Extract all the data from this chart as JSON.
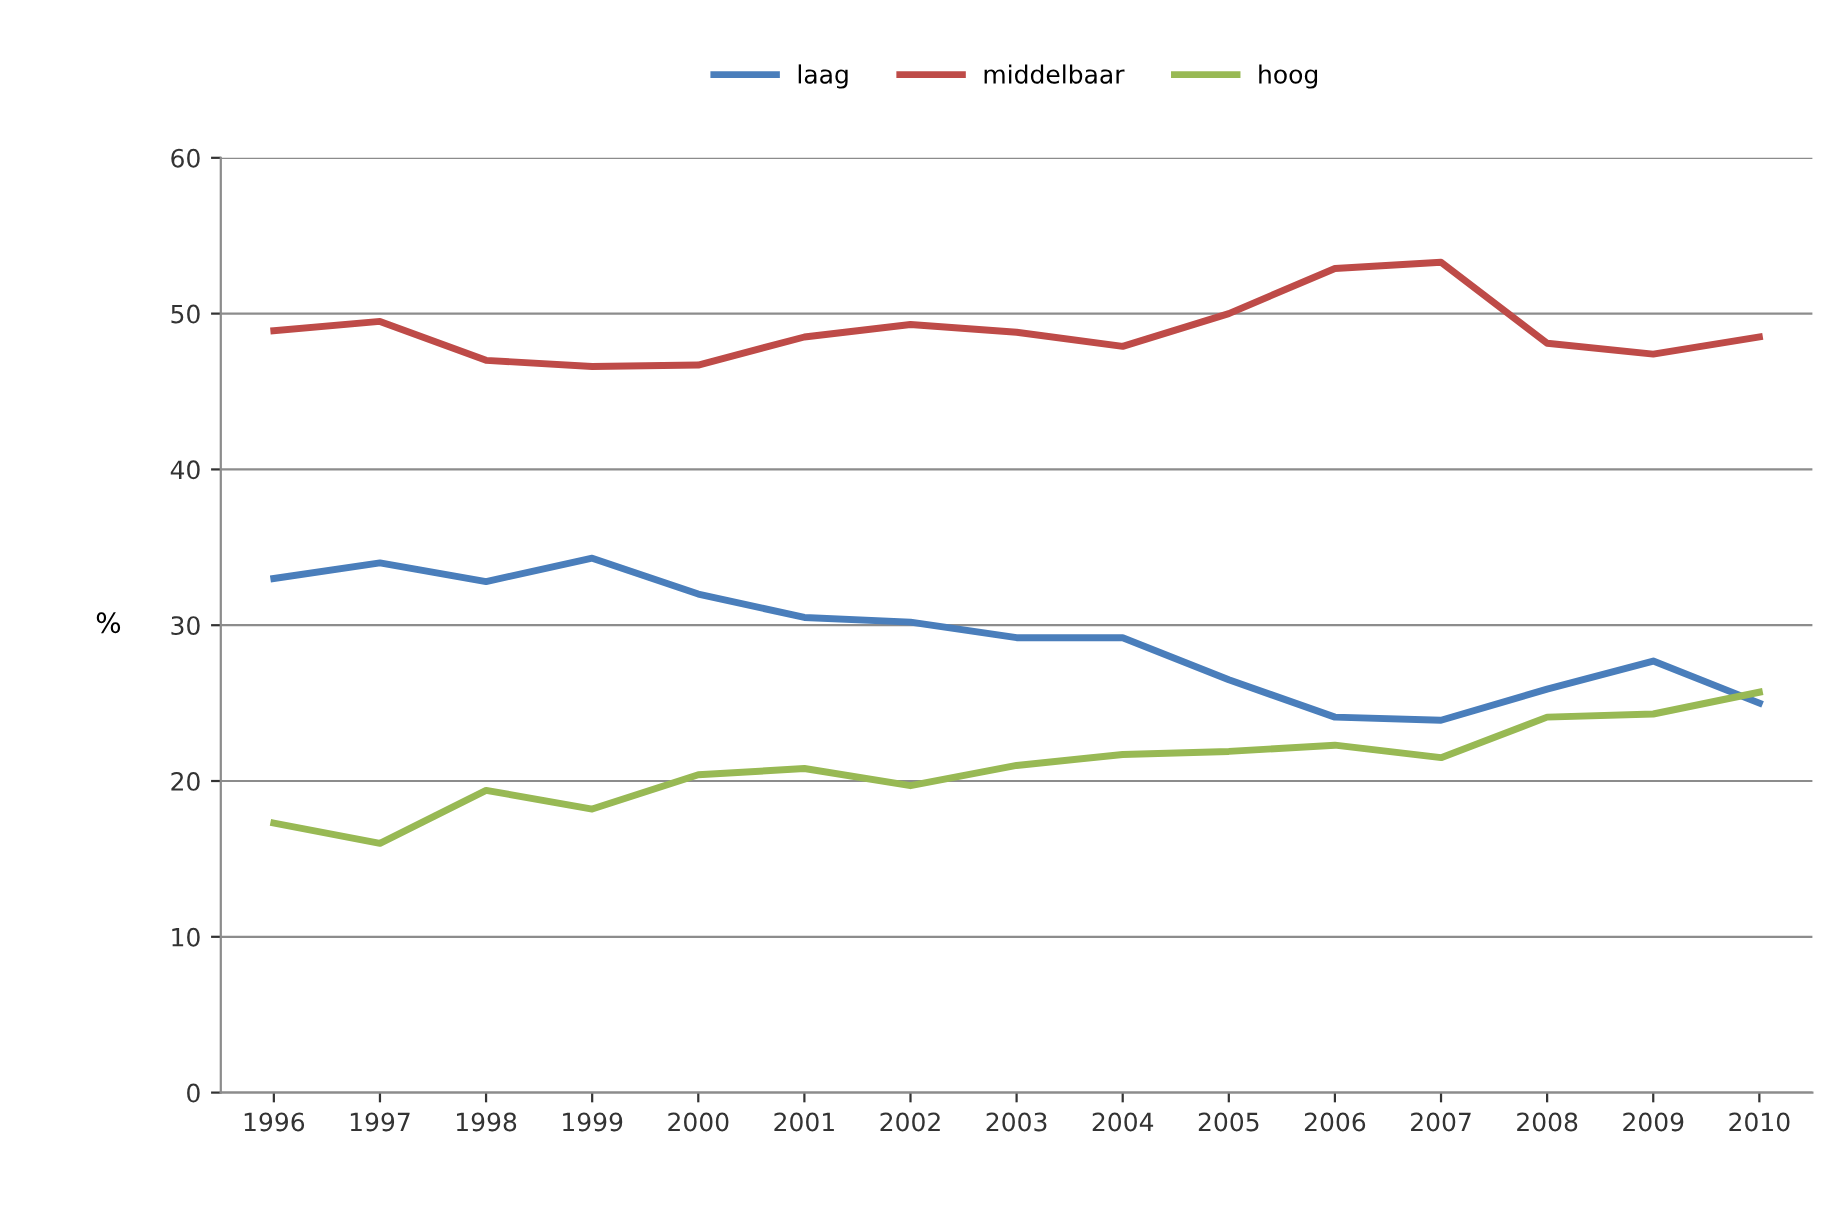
{
  "chart_data": {
    "type": "line",
    "ylabel": "%",
    "categories": [
      "1996",
      "1997",
      "1998",
      "1999",
      "2000",
      "2001",
      "2002",
      "2003",
      "2004",
      "2005",
      "2006",
      "2007",
      "2008",
      "2009",
      "2010"
    ],
    "series": [
      {
        "name": "laag",
        "color": "#4a7ebb",
        "values": [
          33,
          34,
          32.8,
          34.3,
          32,
          30.5,
          30.2,
          29.2,
          29.2,
          26.5,
          24.1,
          23.9,
          25.9,
          27.7,
          25
        ]
      },
      {
        "name": "middelbaar",
        "color": "#be4b48",
        "values": [
          48.9,
          49.5,
          47,
          46.6,
          46.7,
          48.5,
          49.3,
          48.8,
          47.9,
          50,
          52.9,
          53.3,
          48.1,
          47.4,
          48.5
        ]
      },
      {
        "name": "hoog",
        "color": "#98b954",
        "values": [
          17.3,
          16,
          19.4,
          18.2,
          20.4,
          20.8,
          19.7,
          21,
          21.7,
          21.9,
          22.3,
          21.5,
          24.1,
          24.3,
          25.7
        ]
      }
    ],
    "ylim": [
      0,
      60
    ],
    "yticks": [
      0,
      10,
      20,
      30,
      40,
      50,
      60
    ],
    "grid": "y",
    "legend": "top",
    "marker": "none",
    "line_style": "solid"
  }
}
